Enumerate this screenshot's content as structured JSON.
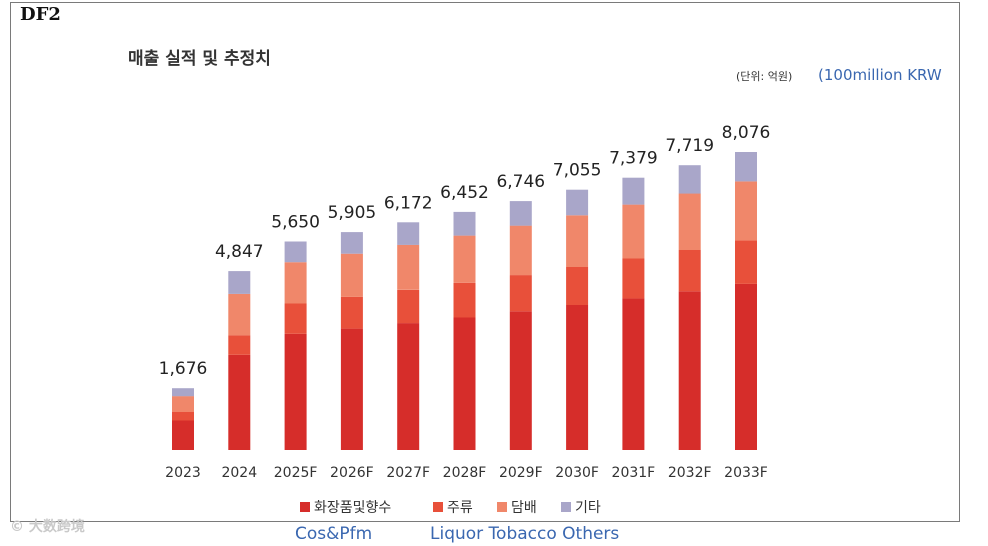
{
  "corner_label": "DF2",
  "unit_ko": "(단위: 억원)",
  "unit_en": "(100million KRW",
  "watermark": "© 大数跨境",
  "english_legend": {
    "cos": "Cos&Pfm",
    "rest": "Liquor Tobacco Others"
  },
  "chart_data": {
    "type": "bar",
    "stacked": true,
    "title": "매출 실적 및 추정치",
    "categories": [
      "2023",
      "2024",
      "2025F",
      "2026F",
      "2027F",
      "2028F",
      "2029F",
      "2030F",
      "2031F",
      "2032F",
      "2033F"
    ],
    "totals": [
      1676,
      4847,
      5650,
      5905,
      6172,
      6452,
      6746,
      7055,
      7379,
      7719,
      8076
    ],
    "total_labels": [
      "1,676",
      "4,847",
      "5,650",
      "5,905",
      "6,172",
      "6,452",
      "6,746",
      "7,055",
      "7,379",
      "7,719",
      "8,076"
    ],
    "series": [
      {
        "name": "화장품및향수",
        "color": "#d62d2a",
        "values": [
          800,
          2580,
          3150,
          3290,
          3440,
          3590,
          3760,
          3930,
          4110,
          4300,
          4500
        ]
      },
      {
        "name": "주류",
        "color": "#e8503a",
        "values": [
          230,
          530,
          820,
          860,
          900,
          940,
          980,
          1030,
          1080,
          1120,
          1180
        ]
      },
      {
        "name": "담배",
        "color": "#f0876a",
        "values": [
          430,
          1120,
          1120,
          1170,
          1220,
          1280,
          1340,
          1400,
          1460,
          1530,
          1600
        ]
      },
      {
        "name": "기타",
        "color": "#a9a6c9",
        "values": [
          216,
          617,
          560,
          585,
          612,
          642,
          666,
          695,
          729,
          769,
          796
        ]
      }
    ],
    "ylim": [
      0,
      9000
    ],
    "grid": false,
    "legend_position": "bottom"
  }
}
